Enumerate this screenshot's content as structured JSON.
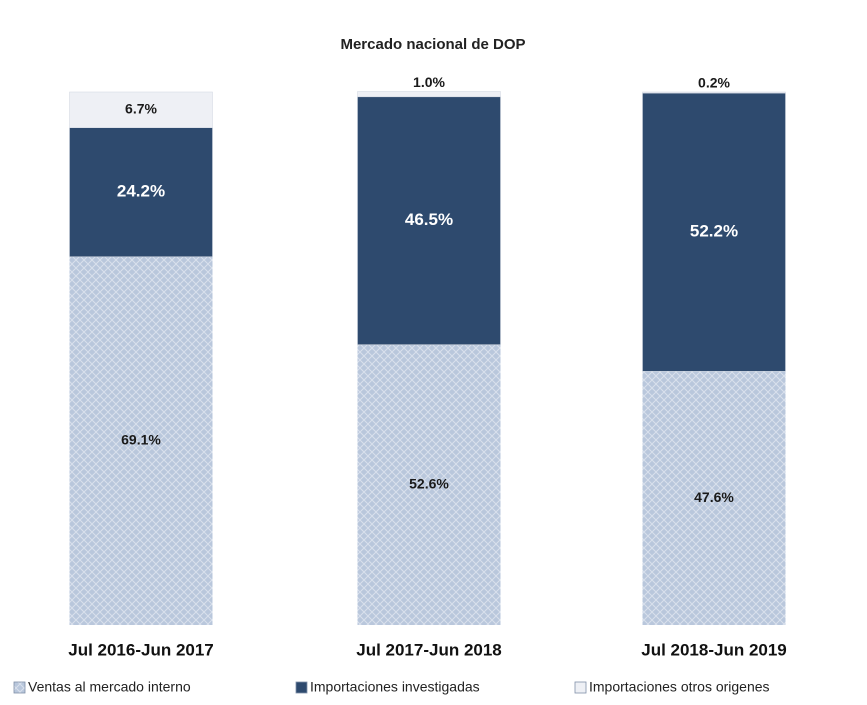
{
  "chart_data": {
    "type": "stacked_bar",
    "title": "Mercado nacional de DOP",
    "categories": [
      "Jul 2016-Jun 2017",
      "Jul 2017-Jun 2018",
      "Jul 2018-Jun 2019"
    ],
    "ylim": [
      0,
      100
    ],
    "series": [
      {
        "name": "Ventas al mercado interno",
        "color": "#b9c7dc",
        "label_color": "#1a1a1a",
        "pattern": true,
        "values": [
          69.1,
          52.6,
          47.6
        ],
        "value_labels": [
          "69.1%",
          "52.6%",
          "47.6%"
        ]
      },
      {
        "name": "Importaciones investigadas",
        "color": "#2e4a6e",
        "label_color": "#ffffff",
        "pattern": false,
        "values": [
          24.2,
          46.5,
          52.2
        ],
        "value_labels": [
          "24.2%",
          "46.5%",
          "52.2%"
        ]
      },
      {
        "name": "Importaciones otros origenes",
        "color": "#eef0f5",
        "label_color": "#1a1a1a",
        "pattern": false,
        "values": [
          6.7,
          1.0,
          0.2
        ],
        "value_labels": [
          "6.7%",
          "1.0%",
          "0.2%"
        ]
      }
    ],
    "legend": "bottom"
  }
}
